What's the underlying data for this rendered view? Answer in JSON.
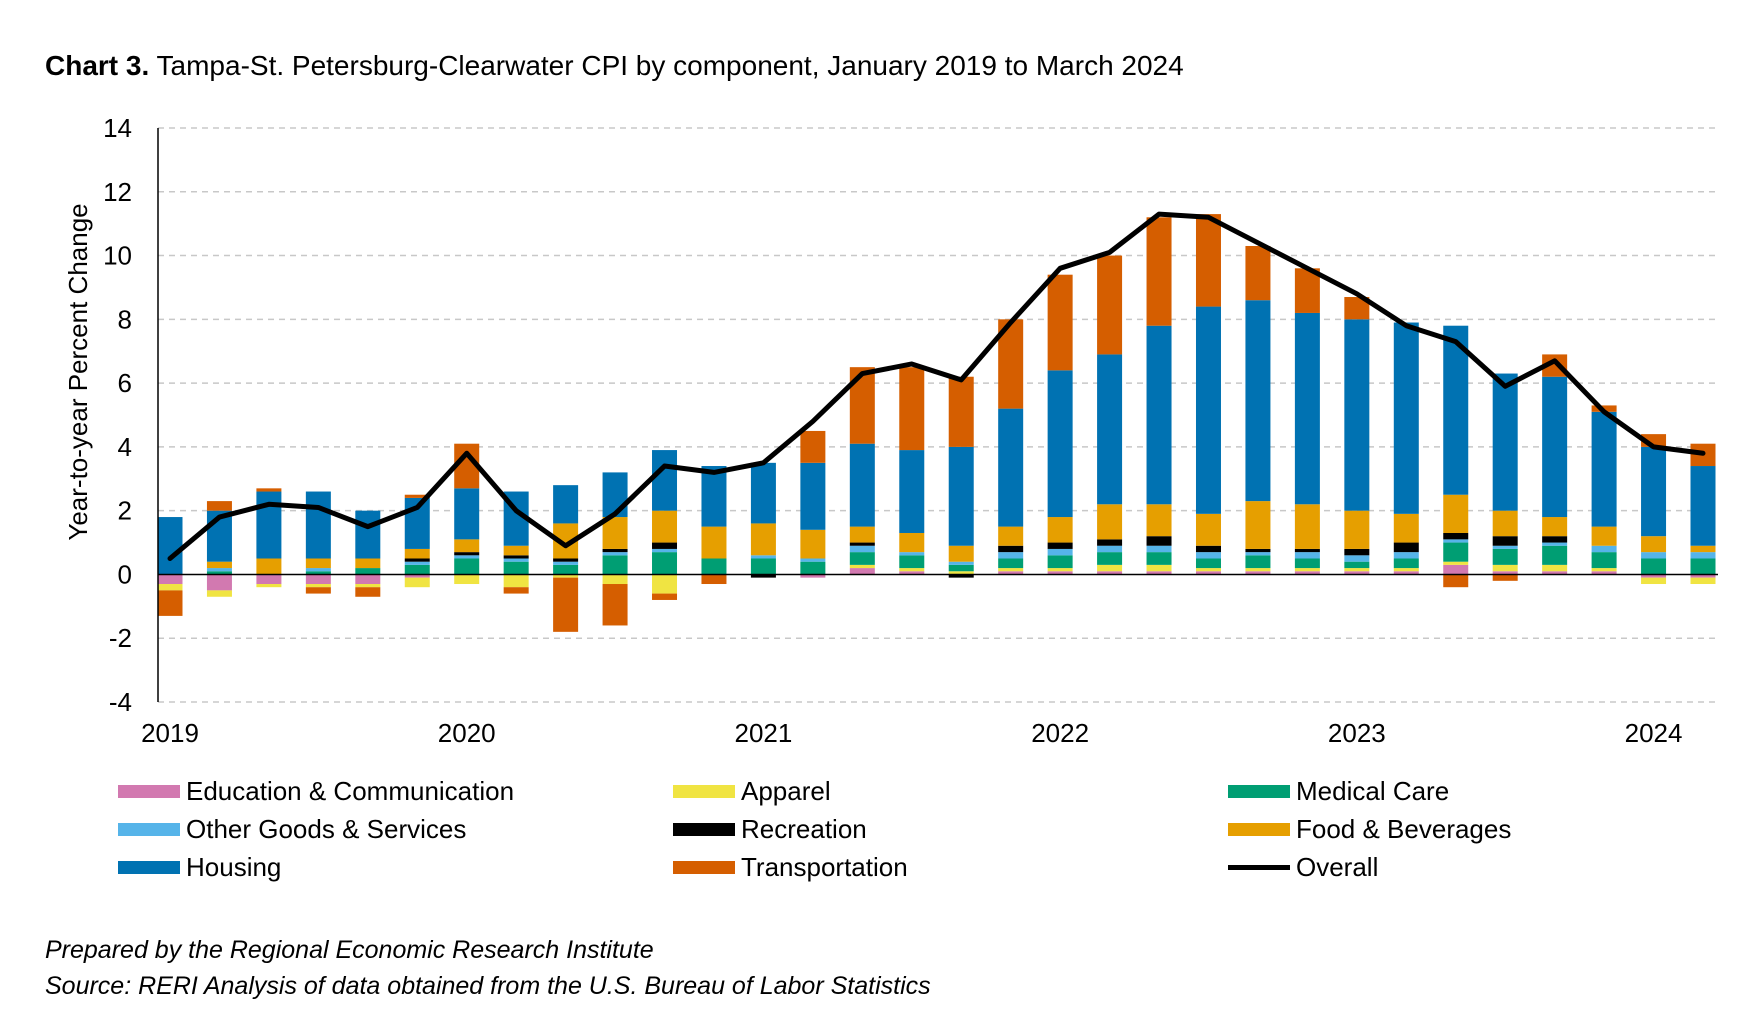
{
  "title_bold": "Chart 3.",
  "title_rest": " Tampa-St. Petersburg-Clearwater CPI by component, January 2019 to March 2024",
  "footer": {
    "line1": "Prepared by the Regional Economic Research Institute",
    "line2": "Source: RERI Analysis of data obtained from the U.S. Bureau of Labor Statistics"
  },
  "legend": [
    {
      "label": "Education & Communication",
      "color": "#d279b0",
      "kind": "bar"
    },
    {
      "label": "Apparel",
      "color": "#f0e442",
      "kind": "bar"
    },
    {
      "label": "Medical Care",
      "color": "#009e73",
      "kind": "bar"
    },
    {
      "label": "Other Goods & Services",
      "color": "#56b4e9",
      "kind": "bar"
    },
    {
      "label": "Recreation",
      "color": "#000000",
      "kind": "bar"
    },
    {
      "label": "Food & Beverages",
      "color": "#e69f00",
      "kind": "bar"
    },
    {
      "label": "Housing",
      "color": "#0072b2",
      "kind": "bar"
    },
    {
      "label": "Transportation",
      "color": "#d55e00",
      "kind": "bar"
    },
    {
      "label": "Overall",
      "color": "#000000",
      "kind": "line"
    }
  ],
  "chart_data": {
    "type": "bar",
    "stacked": true,
    "ylabel": "Year-to-year Percent Change",
    "ylim": [
      -4,
      14
    ],
    "yticks": [
      -4,
      -2,
      0,
      2,
      4,
      6,
      8,
      10,
      12,
      14
    ],
    "xtick_labels": [
      "2019",
      "2020",
      "2021",
      "2022",
      "2023",
      "2024"
    ],
    "grid": "horizontal dashed",
    "legend_position": "bottom",
    "x": [
      "2019-01",
      "2019-03",
      "2019-05",
      "2019-07",
      "2019-09",
      "2019-11",
      "2020-01",
      "2020-03",
      "2020-05",
      "2020-07",
      "2020-09",
      "2020-11",
      "2021-01",
      "2021-03",
      "2021-05",
      "2021-07",
      "2021-09",
      "2021-11",
      "2022-01",
      "2022-03",
      "2022-05",
      "2022-07",
      "2022-09",
      "2022-11",
      "2023-01",
      "2023-03",
      "2023-05",
      "2023-07",
      "2023-09",
      "2023-11",
      "2024-01",
      "2024-03"
    ],
    "series": [
      {
        "name": "Education & Communication",
        "color": "#d279b0",
        "values": [
          -0.3,
          -0.5,
          -0.3,
          -0.3,
          -0.3,
          -0.1,
          0.0,
          0.0,
          0.0,
          0.0,
          0.0,
          0.0,
          0.0,
          -0.1,
          0.2,
          0.1,
          0.0,
          0.1,
          0.1,
          0.1,
          0.1,
          0.1,
          0.1,
          0.1,
          0.1,
          0.1,
          0.3,
          0.1,
          0.1,
          0.1,
          -0.1,
          -0.1
        ]
      },
      {
        "name": "Apparel",
        "color": "#f0e442",
        "values": [
          -0.2,
          -0.2,
          -0.1,
          -0.1,
          -0.1,
          -0.3,
          -0.3,
          -0.4,
          -0.1,
          -0.3,
          -0.6,
          0.0,
          0.0,
          0.0,
          0.1,
          0.1,
          0.1,
          0.1,
          0.1,
          0.2,
          0.2,
          0.1,
          0.1,
          0.1,
          0.1,
          0.1,
          0.1,
          0.2,
          0.2,
          0.1,
          -0.2,
          -0.2
        ]
      },
      {
        "name": "Medical Care",
        "color": "#009e73",
        "values": [
          0.0,
          0.1,
          0.0,
          0.1,
          0.2,
          0.3,
          0.5,
          0.4,
          0.3,
          0.6,
          0.7,
          0.5,
          0.5,
          0.4,
          0.4,
          0.4,
          0.2,
          0.3,
          0.4,
          0.4,
          0.4,
          0.3,
          0.4,
          0.3,
          0.2,
          0.3,
          0.6,
          0.5,
          0.6,
          0.5,
          0.5,
          0.5
        ]
      },
      {
        "name": "Other Goods & Services",
        "color": "#56b4e9",
        "values": [
          0.0,
          0.1,
          0.0,
          0.1,
          0.0,
          0.1,
          0.1,
          0.1,
          0.1,
          0.1,
          0.1,
          0.0,
          0.1,
          0.1,
          0.2,
          0.1,
          0.1,
          0.2,
          0.2,
          0.2,
          0.2,
          0.2,
          0.1,
          0.2,
          0.2,
          0.2,
          0.1,
          0.1,
          0.1,
          0.2,
          0.2,
          0.2
        ]
      },
      {
        "name": "Recreation",
        "color": "#000000",
        "values": [
          0.0,
          0.0,
          0.0,
          0.0,
          0.0,
          0.1,
          0.1,
          0.1,
          0.1,
          0.1,
          0.2,
          0.0,
          -0.1,
          0.0,
          0.1,
          0.0,
          -0.1,
          0.2,
          0.2,
          0.2,
          0.3,
          0.2,
          0.1,
          0.1,
          0.2,
          0.3,
          0.2,
          0.3,
          0.2,
          0.0,
          0.0,
          0.0
        ]
      },
      {
        "name": "Food & Beverages",
        "color": "#e69f00",
        "values": [
          0.0,
          0.2,
          0.5,
          0.3,
          0.3,
          0.3,
          0.4,
          0.3,
          1.1,
          1.0,
          1.0,
          1.0,
          1.0,
          0.9,
          0.5,
          0.6,
          0.5,
          0.6,
          0.8,
          1.1,
          1.0,
          1.0,
          1.5,
          1.4,
          1.2,
          0.9,
          1.2,
          0.8,
          0.6,
          0.6,
          0.5,
          0.2
        ]
      },
      {
        "name": "Housing",
        "color": "#0072b2",
        "values": [
          1.8,
          1.6,
          2.1,
          2.1,
          1.5,
          1.6,
          1.6,
          1.7,
          1.2,
          1.4,
          1.9,
          1.9,
          1.9,
          2.1,
          2.6,
          2.6,
          3.1,
          3.7,
          4.6,
          4.7,
          5.6,
          6.5,
          6.3,
          6.0,
          6.0,
          6.0,
          5.3,
          4.3,
          4.4,
          3.6,
          2.8,
          2.5
        ]
      },
      {
        "name": "Transportation",
        "color": "#d55e00",
        "values": [
          -0.8,
          0.3,
          0.1,
          -0.2,
          -0.3,
          0.1,
          1.4,
          -0.2,
          -1.7,
          -1.3,
          -0.2,
          -0.3,
          0.0,
          1.0,
          2.4,
          2.6,
          2.2,
          2.8,
          3.0,
          3.1,
          3.4,
          2.9,
          1.7,
          1.4,
          0.7,
          0.0,
          -0.4,
          -0.2,
          0.7,
          0.2,
          0.4,
          0.7
        ]
      }
    ],
    "overall": {
      "name": "Overall",
      "values": [
        0.5,
        1.8,
        2.2,
        2.1,
        1.5,
        2.1,
        3.8,
        2.0,
        0.9,
        1.9,
        3.4,
        3.2,
        3.5,
        4.8,
        6.3,
        6.6,
        6.1,
        7.9,
        9.6,
        10.1,
        11.3,
        11.2,
        10.4,
        9.6,
        8.8,
        7.8,
        7.3,
        5.9,
        6.7,
        5.1,
        4.0,
        3.8
      ]
    }
  }
}
